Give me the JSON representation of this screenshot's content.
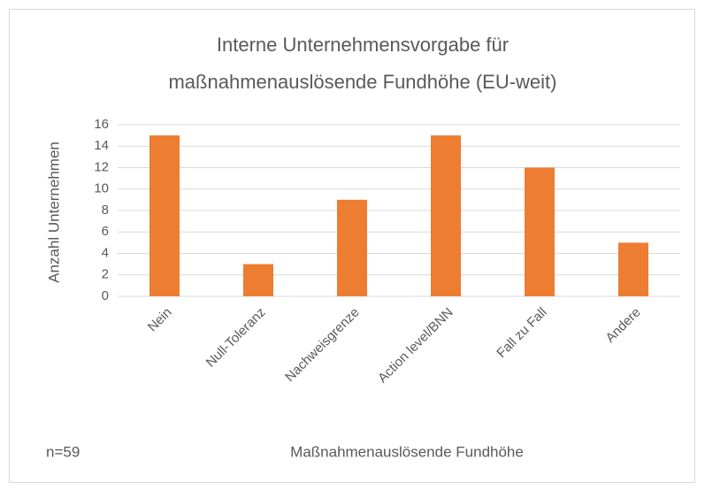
{
  "chart_data": {
    "type": "bar",
    "title": [
      "Interne Unternehmensvorgabe für",
      "maßnahmenauslösende Fundhöhe (EU-weit)"
    ],
    "categories": [
      "Nein",
      "Null-Toleranz",
      "Nachweisgrenze",
      "Action level/BNN",
      "Fall zu Fall",
      "Andere"
    ],
    "values": [
      15,
      3,
      9,
      15,
      12,
      5
    ],
    "color": "#ed7d31",
    "ylim": [
      0,
      16
    ],
    "yticks": [
      0,
      2,
      4,
      6,
      8,
      10,
      12,
      14,
      16
    ],
    "grid": true,
    "y_label": "Anzahl Unternehmen",
    "x_label": "Maßnahmenauslösende Fundhöhe",
    "annotation": "n=59"
  }
}
